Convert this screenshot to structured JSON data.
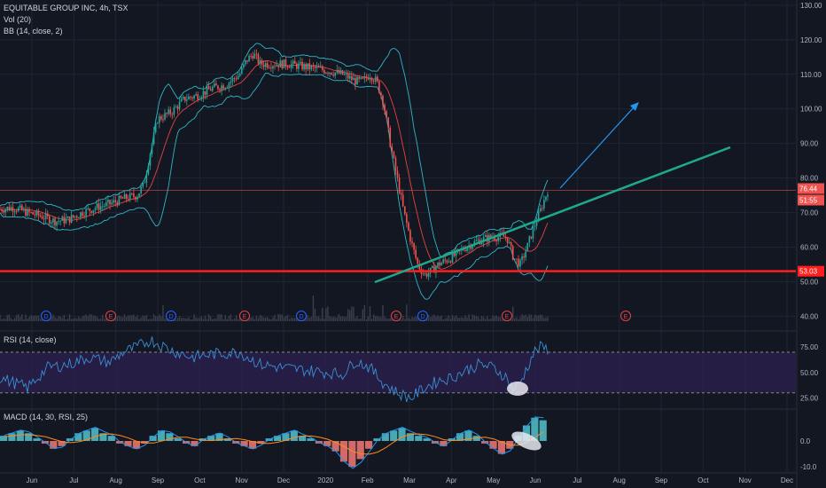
{
  "legend": {
    "symbol_line": "EQUITABLE GROUP INC, 4h, TSX",
    "volume": "Vol (20)",
    "bb": "BB (14, close, 2)"
  },
  "indicators": {
    "rsi_label": "RSI (14, close)",
    "macd_label": "MACD (14, 30, RSI, 25)"
  },
  "colors": {
    "background": "#131722",
    "grid": "#1f2433",
    "candle_up": "#26a69a",
    "candle_down": "#ef5350",
    "bb_band": "#2eb7c6",
    "bb_basis": "#e6433f",
    "support": "#ff1e1e",
    "trendline": "#1fa88c",
    "arrow": "#2196f3",
    "rsi_line": "#3a8fd6",
    "rsi_band": "#2a1f4a",
    "macd_line": "#2196f3",
    "signal_line": "#ff8c1a",
    "price_label_last": "#ef5350"
  },
  "chart_data": [
    {
      "type": "candlestick",
      "title": "EQUITABLE GROUP INC, 4h, TSX",
      "x_ticks": [
        "Jun",
        "Jul",
        "Aug",
        "Sep",
        "Oct",
        "Nov",
        "Dec",
        "2020",
        "Feb",
        "Mar",
        "Apr",
        "May",
        "Jun",
        "Jul",
        "Aug",
        "Sep",
        "Oct",
        "Nov",
        "Dec"
      ],
      "y_ticks": [
        "130.00",
        "120.00",
        "110.00",
        "100.00",
        "90.00",
        "80.00",
        "70.00",
        "60.00",
        "50.00",
        "40.00"
      ],
      "ylim": [
        36,
        131
      ],
      "y_tick_values": [
        130,
        120,
        110,
        100,
        90,
        80,
        70,
        60,
        50,
        40
      ],
      "price_labels": {
        "last": "76.44",
        "timer": "51:55",
        "support": "53.03"
      },
      "last_price": 76.44,
      "support_level": 53.03,
      "close_path": [
        [
          0,
          71
        ],
        [
          4,
          71.5
        ],
        [
          8,
          70
        ],
        [
          12,
          69
        ],
        [
          16,
          67.5
        ],
        [
          20,
          68
        ],
        [
          24,
          70
        ],
        [
          28,
          71.5
        ],
        [
          32,
          72.5
        ],
        [
          36,
          74
        ],
        [
          40,
          75
        ],
        [
          42,
          78
        ],
        [
          44,
          88
        ],
        [
          46,
          97
        ],
        [
          50,
          99
        ],
        [
          54,
          103
        ],
        [
          58,
          104
        ],
        [
          62,
          106
        ],
        [
          66,
          107
        ],
        [
          70,
          110
        ],
        [
          72,
          114
        ],
        [
          74,
          116
        ],
        [
          76,
          113
        ],
        [
          80,
          113
        ],
        [
          84,
          113
        ],
        [
          90,
          112
        ],
        [
          96,
          111
        ],
        [
          100,
          110
        ],
        [
          104,
          108
        ],
        [
          106,
          108
        ],
        [
          108,
          110
        ],
        [
          110,
          108
        ],
        [
          112,
          102
        ],
        [
          114,
          90
        ],
        [
          116,
          80
        ],
        [
          118,
          70
        ],
        [
          120,
          62
        ],
        [
          122,
          55
        ],
        [
          124,
          52
        ],
        [
          126,
          53
        ],
        [
          128,
          55
        ],
        [
          132,
          57
        ],
        [
          136,
          60
        ],
        [
          140,
          62
        ],
        [
          144,
          63
        ],
        [
          148,
          63
        ],
        [
          150,
          57
        ],
        [
          152,
          55
        ],
        [
          154,
          60
        ],
        [
          156,
          66
        ],
        [
          158,
          71
        ],
        [
          160,
          76.44
        ]
      ],
      "x_range_days": [
        0,
        240
      ],
      "month_tick_days": [
        5,
        20,
        36,
        51,
        66,
        82,
        98,
        113,
        128,
        143,
        158,
        173,
        188,
        204,
        219,
        235,
        250,
        266,
        281
      ]
    },
    {
      "type": "line",
      "title": "RSI (14, close)",
      "y_ticks": [
        "75.00",
        "50.00",
        "25.00"
      ],
      "y_tick_values": [
        75,
        50,
        25
      ],
      "ylim": [
        15,
        90
      ],
      "overbought": 70,
      "oversold": 30,
      "path": [
        [
          0,
          45
        ],
        [
          8,
          35
        ],
        [
          14,
          55
        ],
        [
          20,
          58
        ],
        [
          26,
          65
        ],
        [
          32,
          60
        ],
        [
          36,
          70
        ],
        [
          40,
          75
        ],
        [
          44,
          82
        ],
        [
          50,
          72
        ],
        [
          56,
          65
        ],
        [
          62,
          68
        ],
        [
          70,
          70
        ],
        [
          76,
          58
        ],
        [
          82,
          55
        ],
        [
          90,
          52
        ],
        [
          96,
          50
        ],
        [
          100,
          48
        ],
        [
          104,
          62
        ],
        [
          108,
          55
        ],
        [
          112,
          40
        ],
        [
          116,
          30
        ],
        [
          120,
          25
        ],
        [
          124,
          35
        ],
        [
          128,
          42
        ],
        [
          132,
          45
        ],
        [
          136,
          52
        ],
        [
          140,
          58
        ],
        [
          144,
          55
        ],
        [
          148,
          45
        ],
        [
          150,
          33
        ],
        [
          152,
          40
        ],
        [
          154,
          55
        ],
        [
          156,
          70
        ],
        [
          158,
          75
        ],
        [
          160,
          73
        ]
      ]
    },
    {
      "type": "bar",
      "title": "MACD (14, 30, RSI, 25)",
      "y_ticks": [
        "0.0",
        "-10.0"
      ],
      "y_tick_values": [
        0,
        -10
      ],
      "ylim": [
        -12,
        12
      ],
      "histogram": [
        2,
        3,
        4,
        3,
        1,
        -1,
        -3,
        -2,
        1,
        3,
        4,
        5,
        3,
        2,
        -1,
        -2,
        -3,
        -1,
        2,
        4,
        3,
        1,
        -1,
        -2,
        1,
        2,
        3,
        1,
        -1,
        -2,
        -3,
        -1,
        1,
        2,
        3,
        4,
        2,
        1,
        -1,
        -2,
        -4,
        -8,
        -10,
        -7,
        -3,
        1,
        3,
        4,
        5,
        3,
        2,
        1,
        -1,
        -2,
        1,
        3,
        4,
        2,
        -1,
        -3,
        -5,
        -3,
        2,
        6,
        9,
        8
      ]
    }
  ]
}
